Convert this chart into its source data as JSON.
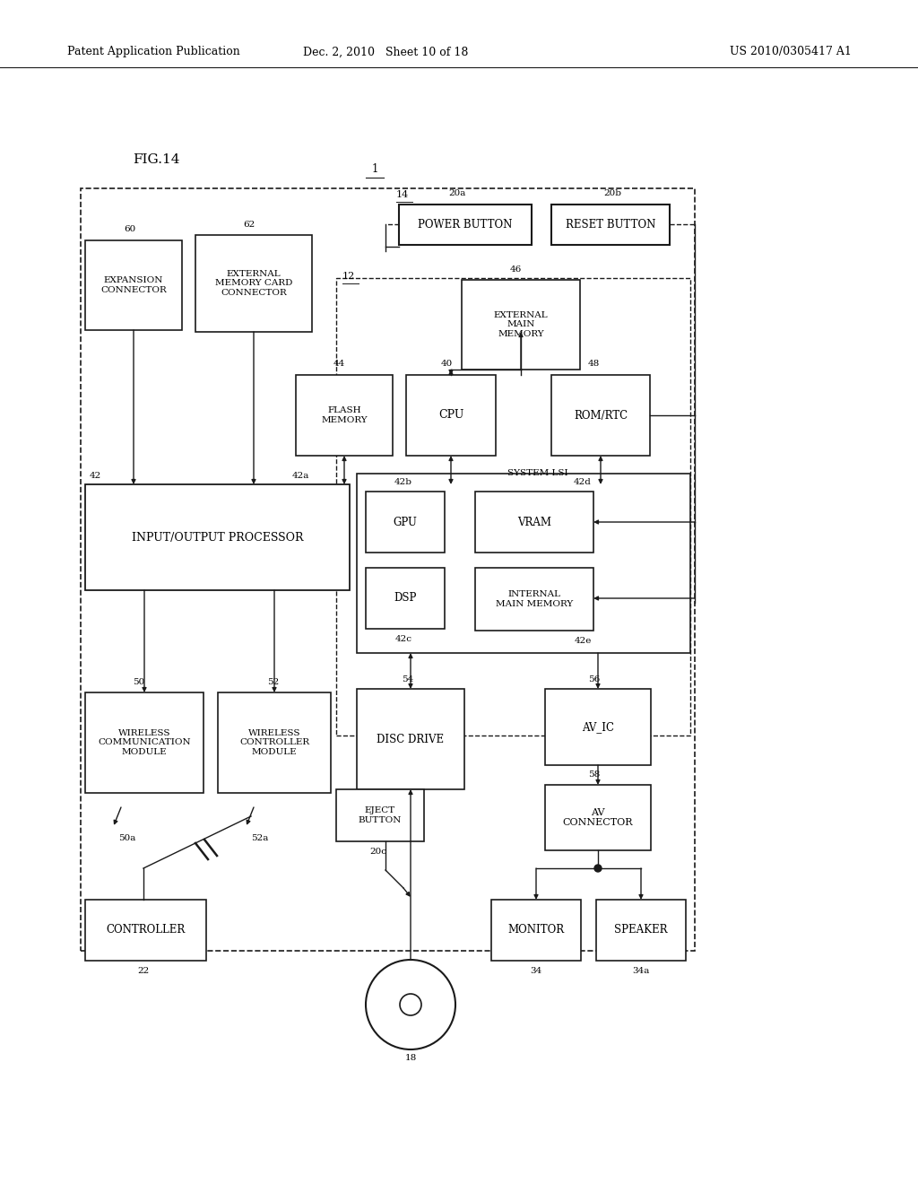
{
  "header_left": "Patent Application Publication",
  "header_mid": "Dec. 2, 2010   Sheet 10 of 18",
  "header_right": "US 2010/0305417 A1",
  "fig_label": "FIG.14",
  "bg_color": "#ffffff",
  "lc": "#1a1a1a"
}
